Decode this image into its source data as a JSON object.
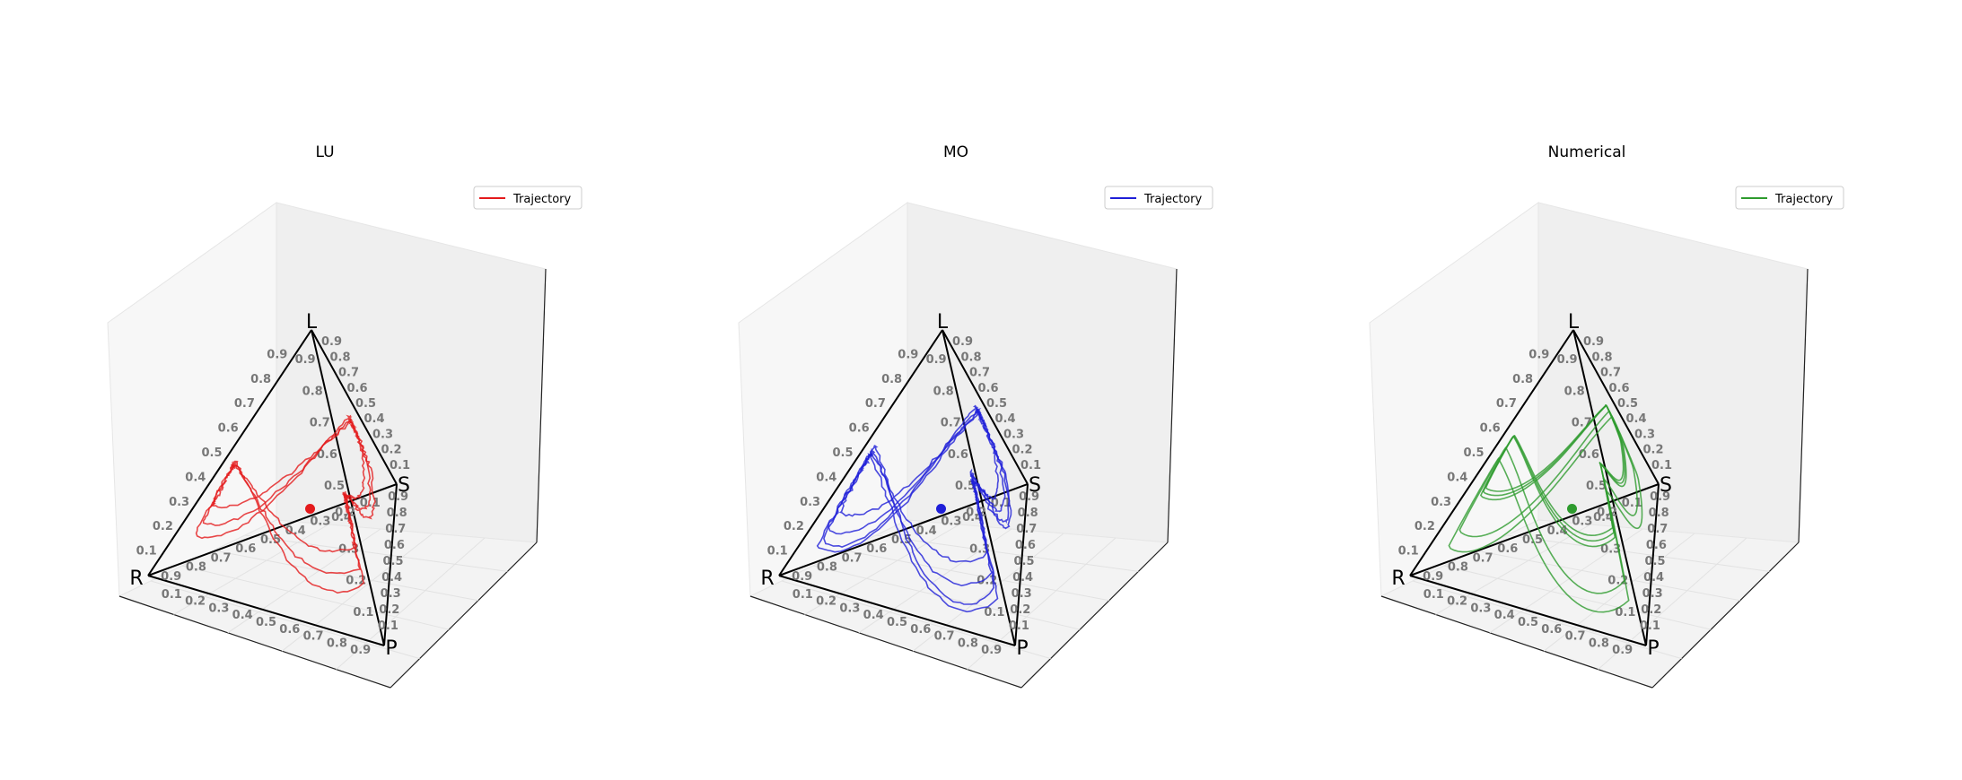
{
  "chart_data": [
    {
      "type": "line",
      "title": "LU",
      "color": "#e41a1c",
      "legend": "Trajectory",
      "legend_position": "top-right",
      "vertices": [
        "L",
        "S",
        "R",
        "P"
      ],
      "ticks": [
        "0.1",
        "0.2",
        "0.3",
        "0.4",
        "0.5",
        "0.6",
        "0.7",
        "0.8",
        "0.9"
      ],
      "equilibrium": {
        "R": 0.25,
        "P": 0.25,
        "S": 0.25,
        "L": 0.25
      },
      "trajectory_style": "noisy",
      "loops": [
        {
          "R": 0.34,
          "P": 0.33,
          "S": 0.33,
          "Lmin": 0.12,
          "Lmax": 0.3
        },
        {
          "R": 0.37,
          "P": 0.36,
          "S": 0.35,
          "Lmin": 0.08,
          "Lmax": 0.33
        },
        {
          "R": 0.39,
          "P": 0.38,
          "S": 0.36,
          "Lmin": 0.05,
          "Lmax": 0.36
        }
      ]
    },
    {
      "type": "line",
      "title": "MO",
      "color": "#1f1fd8",
      "legend": "Trajectory",
      "legend_position": "top-right",
      "vertices": [
        "L",
        "S",
        "R",
        "P"
      ],
      "ticks": [
        "0.1",
        "0.2",
        "0.3",
        "0.4",
        "0.5",
        "0.6",
        "0.7",
        "0.8",
        "0.9"
      ],
      "equilibrium": {
        "R": 0.25,
        "P": 0.25,
        "S": 0.25,
        "L": 0.25
      },
      "trajectory_style": "noisy",
      "loops": [
        {
          "R": 0.36,
          "P": 0.34,
          "S": 0.34,
          "Lmin": 0.1,
          "Lmax": 0.38
        },
        {
          "R": 0.4,
          "P": 0.37,
          "S": 0.37,
          "Lmin": 0.06,
          "Lmax": 0.44
        },
        {
          "R": 0.42,
          "P": 0.4,
          "S": 0.39,
          "Lmin": 0.03,
          "Lmax": 0.5
        },
        {
          "R": 0.44,
          "P": 0.42,
          "S": 0.4,
          "Lmin": 0.02,
          "Lmax": 0.46
        }
      ]
    },
    {
      "type": "line",
      "title": "Numerical",
      "color": "#2e9b2e",
      "legend": "Trajectory",
      "legend_position": "top-right",
      "vertices": [
        "L",
        "S",
        "R",
        "P"
      ],
      "ticks": [
        "0.1",
        "0.2",
        "0.3",
        "0.4",
        "0.5",
        "0.6",
        "0.7",
        "0.8",
        "0.9"
      ],
      "equilibrium": {
        "R": 0.25,
        "P": 0.25,
        "S": 0.25,
        "L": 0.25
      },
      "trajectory_style": "smooth",
      "loops": [
        {
          "R": 0.33,
          "P": 0.34,
          "S": 0.36,
          "Lmin": 0.16,
          "Lmax": 0.48
        },
        {
          "R": 0.34,
          "P": 0.35,
          "S": 0.37,
          "Lmin": 0.15,
          "Lmax": 0.49
        },
        {
          "R": 0.35,
          "P": 0.36,
          "S": 0.38,
          "Lmin": 0.14,
          "Lmax": 0.5
        },
        {
          "R": 0.39,
          "P": 0.4,
          "S": 0.4,
          "Lmin": 0.05,
          "Lmax": 0.46
        },
        {
          "R": 0.43,
          "P": 0.43,
          "S": 0.42,
          "Lmin": 0.02,
          "Lmax": 0.42
        }
      ]
    }
  ]
}
